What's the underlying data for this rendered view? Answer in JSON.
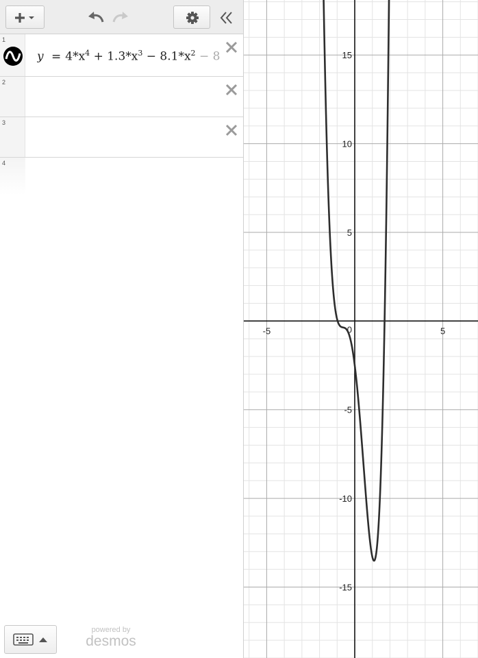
{
  "toolbar": {
    "add_icon": "plus-with-caret-icon",
    "undo_icon": "undo-icon",
    "redo_icon": "redo-icon",
    "settings_icon": "gear-icon",
    "collapse_icon": "double-chevron-left-icon"
  },
  "expressions": [
    {
      "number": "1",
      "lhs": "y",
      "eq": "=",
      "terms": [
        {
          "t": "4*x",
          "sup": "4"
        },
        {
          "t": " + 1.3*x",
          "sup": "3"
        },
        {
          "t": " − 8.1*x",
          "sup": "2"
        },
        {
          "t": " − 8",
          "sup": ""
        }
      ],
      "color": "#000000"
    },
    {
      "number": "2"
    },
    {
      "number": "3"
    },
    {
      "number": "4"
    }
  ],
  "footer": {
    "keyboard_icon": "keyboard-icon",
    "toggle_icon": "triangle-up-icon",
    "powered_by": "powered by",
    "brand": "desmos"
  },
  "graph": {
    "x_ticks": [
      "-5",
      "0",
      "5"
    ],
    "y_ticks": [
      "15",
      "10",
      "5",
      "-5",
      "-10",
      "-15"
    ],
    "x_range": [
      -6.3,
      7
    ],
    "y_range": [
      -19,
      18.1
    ],
    "curve_color": "#2d2d2d",
    "grid": true
  }
}
